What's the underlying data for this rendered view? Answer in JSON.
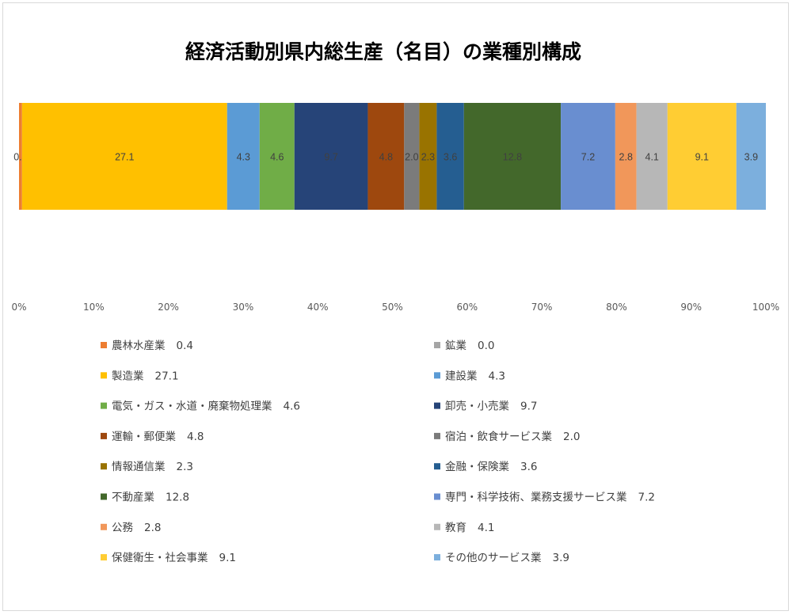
{
  "chart_data": {
    "type": "bar",
    "orientation": "horizontal",
    "stacking": "percent",
    "title": "経済活動別県内総生産（名目）の業種別構成",
    "xlim": [
      0,
      100
    ],
    "x_ticks": [
      "0%",
      "10%",
      "20%",
      "30%",
      "40%",
      "50%",
      "60%",
      "70%",
      "80%",
      "90%",
      "100%"
    ],
    "grid": false,
    "legend_position": "bottom",
    "series": [
      {
        "name": "農林水産業",
        "value": 0.4,
        "label": "0.4",
        "color": "#ED7D31"
      },
      {
        "name": "鉱業",
        "value": 0.0,
        "label": "0.0",
        "color": "#A5A5A5"
      },
      {
        "name": "製造業",
        "value": 27.1,
        "label": "27.1",
        "color": "#FFC000"
      },
      {
        "name": "建設業",
        "value": 4.3,
        "label": "4.3",
        "color": "#5B9BD5"
      },
      {
        "name": "電気・ガス・水道・廃棄物処理業",
        "value": 4.6,
        "label": "4.6",
        "color": "#70AD47"
      },
      {
        "name": "卸売・小売業",
        "value": 9.7,
        "label": "9.7",
        "color": "#264478"
      },
      {
        "name": "運輸・郵便業",
        "value": 4.8,
        "label": "4.8",
        "color": "#9E480E"
      },
      {
        "name": "宿泊・飲食サービス業",
        "value": 2.0,
        "label": "2.0",
        "color": "#7B7B7B"
      },
      {
        "name": "情報通信業",
        "value": 2.3,
        "label": "2.3",
        "color": "#997300"
      },
      {
        "name": "金融・保険業",
        "value": 3.6,
        "label": "3.6",
        "color": "#255E91"
      },
      {
        "name": "不動産業",
        "value": 12.8,
        "label": "12.8",
        "color": "#43682B"
      },
      {
        "name": "専門・科学技術、業務支援サービス業",
        "value": 7.2,
        "label": "7.2",
        "color": "#698ED0"
      },
      {
        "name": "公務",
        "value": 2.8,
        "label": "2.8",
        "color": "#F1975A"
      },
      {
        "name": "教育",
        "value": 4.1,
        "label": "4.1",
        "color": "#B7B7B7"
      },
      {
        "name": "保健衛生・社会事業",
        "value": 9.1,
        "label": "9.1",
        "color": "#FFCD33"
      },
      {
        "name": "その他のサービス業",
        "value": 3.9,
        "label": "3.9",
        "color": "#7CAFDD"
      }
    ]
  }
}
